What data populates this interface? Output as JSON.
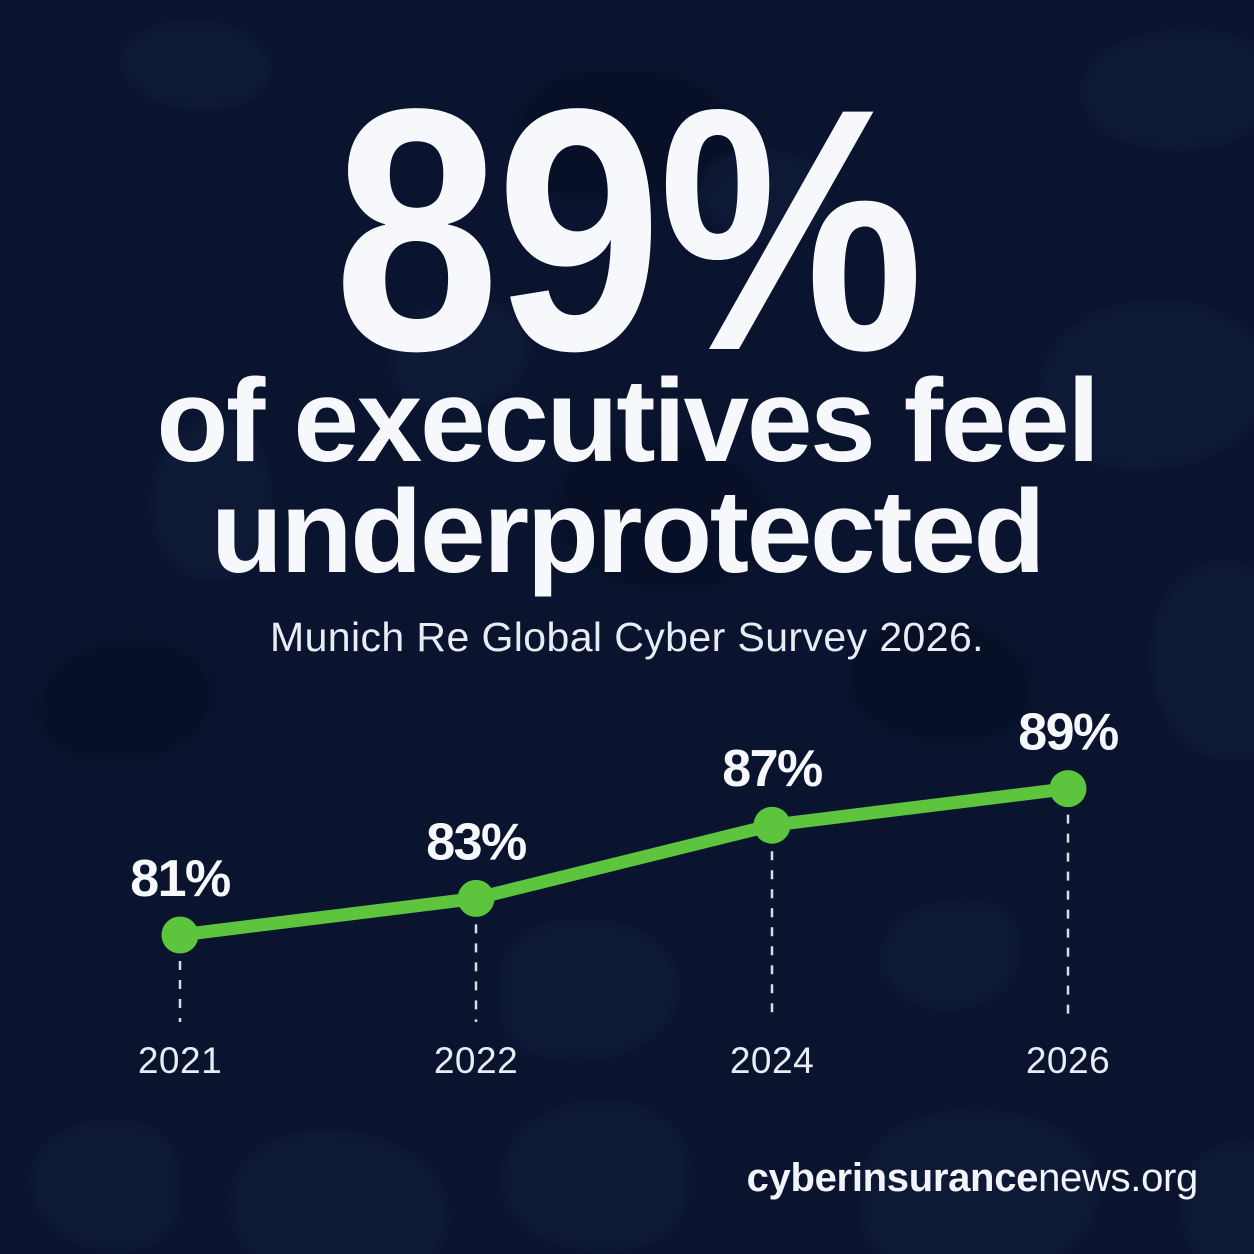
{
  "stat": {
    "value": "89%",
    "description_line1": "of executives feel",
    "description_line2": "underprotected",
    "source": "Munich Re Global Cyber Survey 2026."
  },
  "footer": {
    "brand_bold": "cyberinsurance",
    "brand_regular": "news.org"
  },
  "colors": {
    "background": "#0a142e",
    "accent_green": "#5dc43e",
    "text": "#f6f8fc"
  },
  "chart_data": {
    "type": "line",
    "categories": [
      "2021",
      "2022",
      "2024",
      "2026"
    ],
    "series": [
      {
        "name": "Executives who feel underprotected",
        "values": [
          81,
          83,
          87,
          89
        ]
      }
    ],
    "point_labels": [
      "81%",
      "83%",
      "87%",
      "89%"
    ],
    "ylim": [
      78,
      92
    ],
    "xlabel": "",
    "ylabel": "",
    "grid": false,
    "legend": "none",
    "line_color": "#5dc43e",
    "marker": "circle",
    "callout_style": "dashed-drop-lines-to-year-labels"
  }
}
